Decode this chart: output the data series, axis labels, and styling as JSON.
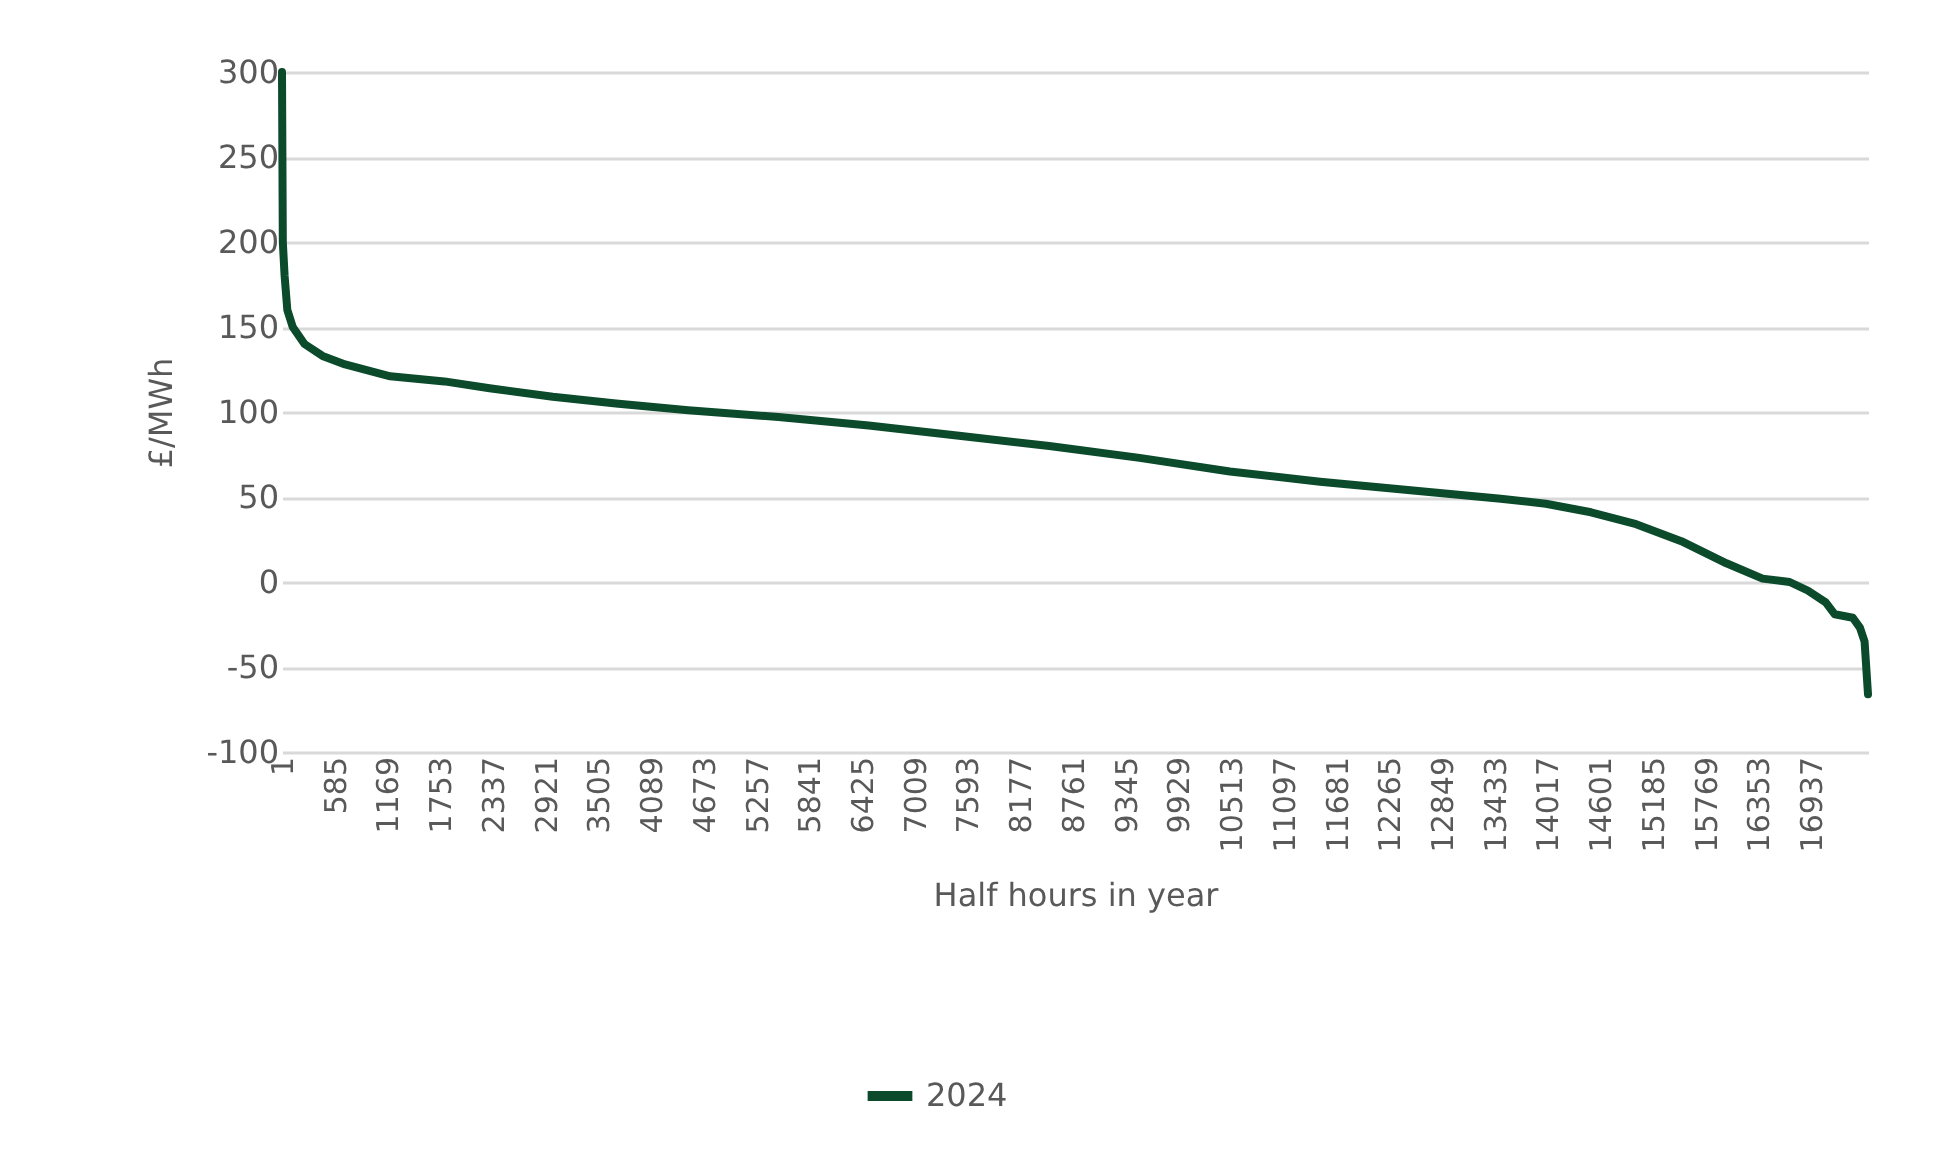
{
  "chart_data": {
    "type": "line",
    "xlabel": "Half hours in year",
    "ylabel": "£/MWh",
    "x": [
      1,
      10,
      30,
      60,
      120,
      250,
      450,
      700,
      1200,
      1800,
      2300,
      3000,
      3700,
      4500,
      5500,
      6500,
      7500,
      8500,
      9500,
      10500,
      11500,
      12500,
      13500,
      14000,
      14500,
      15000,
      15500,
      16000,
      16400,
      16700,
      16900,
      17100,
      17200,
      17400,
      17480,
      17530,
      17568
    ],
    "series": [
      {
        "name": "2024",
        "color": "#0b4a2b",
        "values": [
          300,
          200,
          180,
          160,
          150,
          140,
          133,
          128,
          121,
          118,
          114,
          109,
          105,
          101,
          97,
          92,
          86,
          80,
          73,
          65,
          59,
          54,
          49,
          46,
          41,
          34,
          24,
          11,
          2,
          0,
          -5,
          -12,
          -19,
          -21,
          -27,
          -35,
          -66
        ]
      }
    ],
    "xlim": [
      1,
      17568
    ],
    "xticks": [
      1,
      585,
      1169,
      1753,
      2337,
      2921,
      3505,
      4089,
      4673,
      5257,
      5841,
      6425,
      7009,
      7593,
      8177,
      8761,
      9345,
      9929,
      10513,
      11097,
      11681,
      12265,
      12849,
      13433,
      14017,
      14601,
      15185,
      15769,
      16353,
      16937
    ],
    "ylim": [
      -100,
      300
    ],
    "yticks": [
      -100,
      -50,
      0,
      50,
      100,
      150,
      200,
      250,
      300
    ],
    "grid": "y",
    "legend": "bottom",
    "marker": "none",
    "line_style": "solid"
  }
}
